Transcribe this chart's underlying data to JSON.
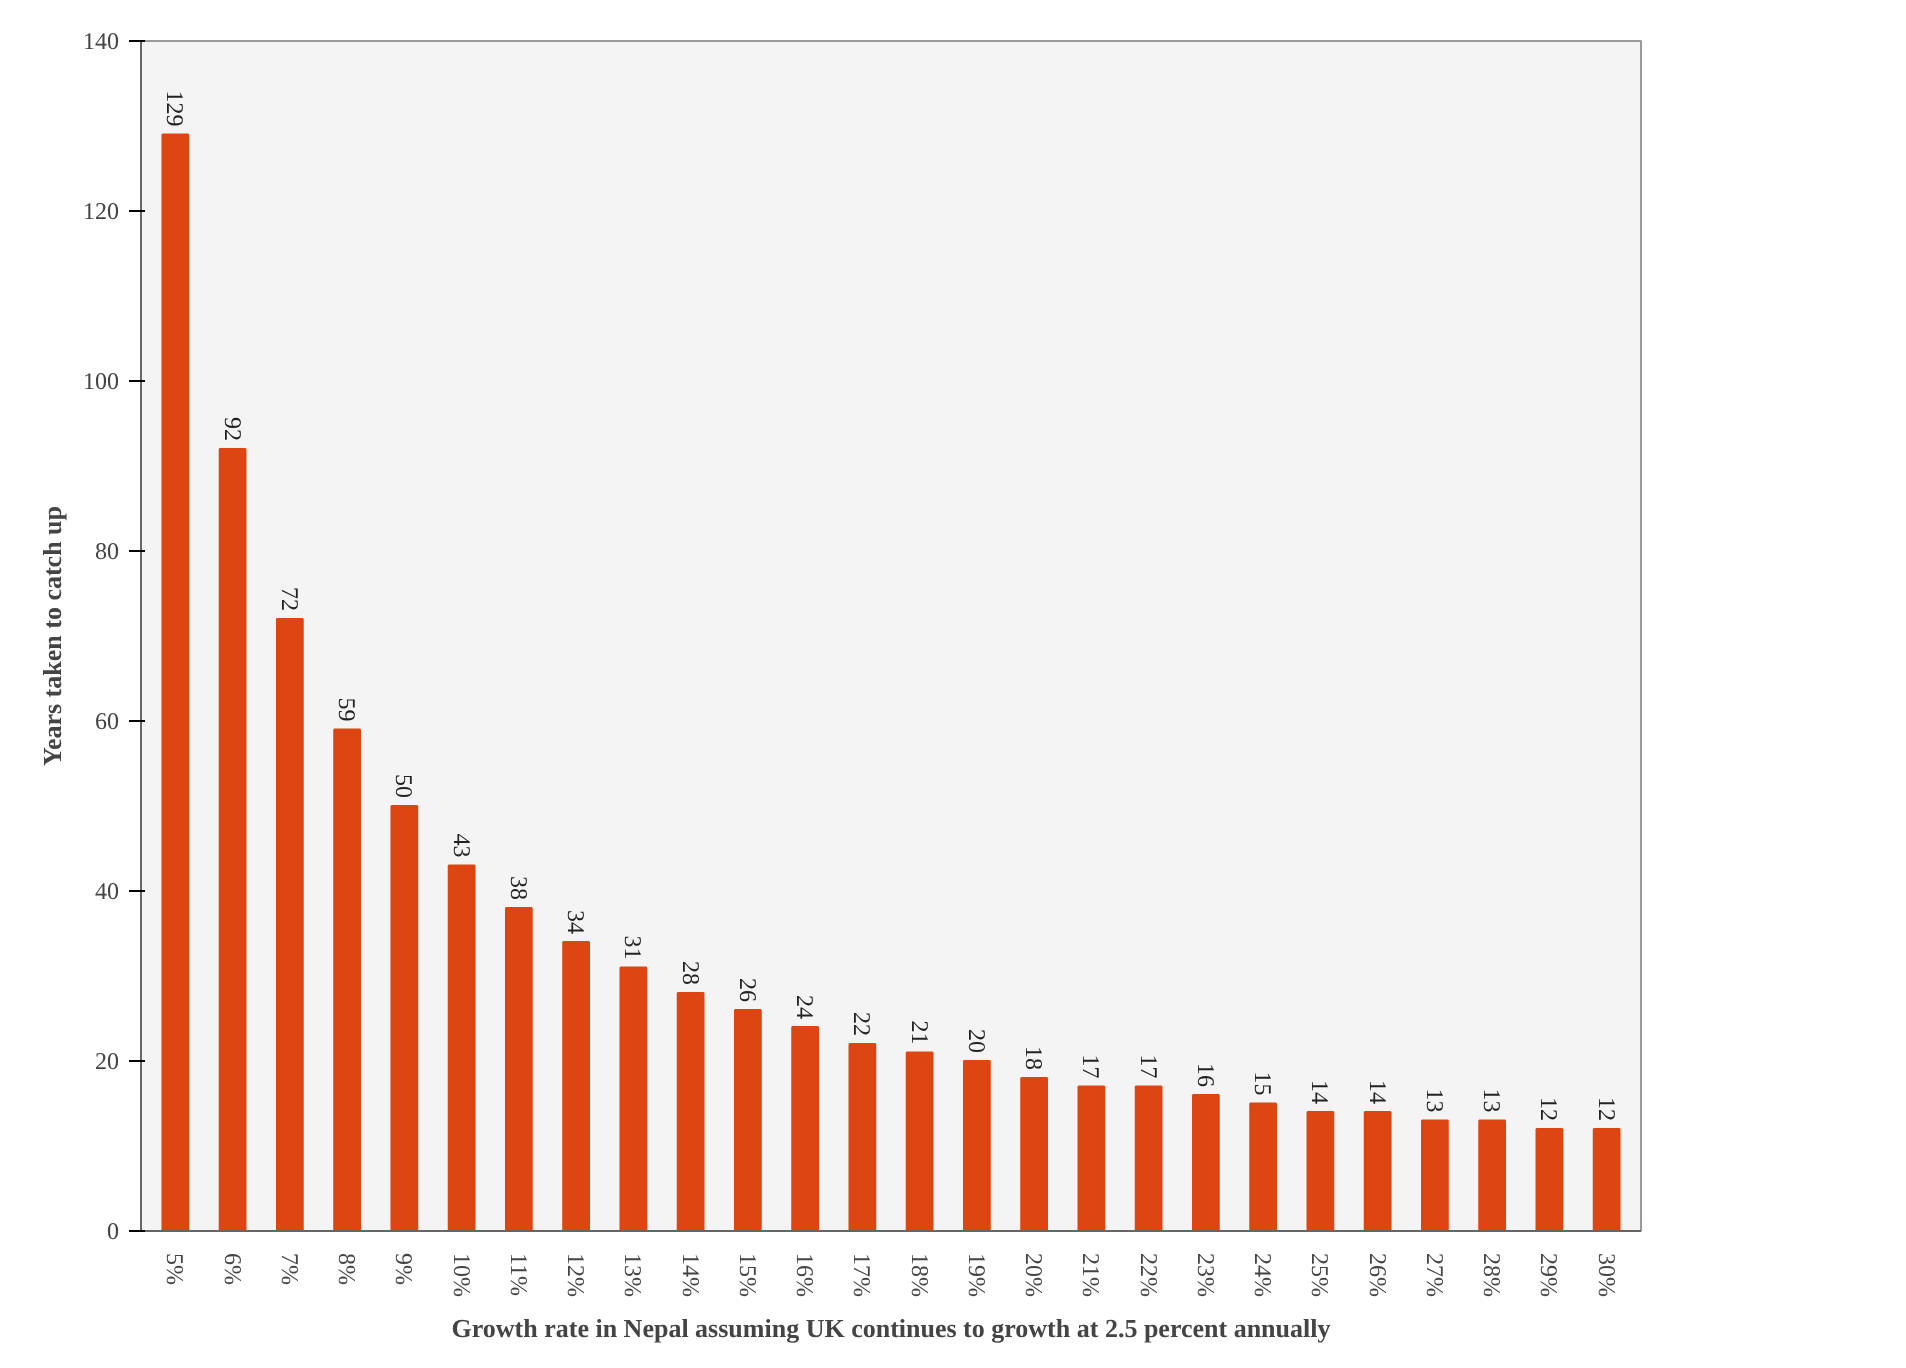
{
  "chart_data": {
    "type": "bar",
    "xlabel": "Growth rate in Nepal assuming UK continues to growth at 2.5 percent annually",
    "ylabel": "Years taken to catch up",
    "categories": [
      "5%",
      "6%",
      "7%",
      "8%",
      "9%",
      "10%",
      "11%",
      "12%",
      "13%",
      "14%",
      "15%",
      "16%",
      "17%",
      "18%",
      "19%",
      "20%",
      "21%",
      "22%",
      "23%",
      "24%",
      "25%",
      "26%",
      "27%",
      "28%",
      "29%",
      "30%"
    ],
    "values": [
      129,
      92,
      72,
      59,
      50,
      43,
      38,
      34,
      31,
      28,
      26,
      24,
      22,
      21,
      20,
      18,
      17,
      17,
      16,
      15,
      14,
      14,
      13,
      13,
      12,
      12
    ],
    "color": "#dd4512",
    "ylim": [
      0,
      140
    ],
    "yticks": [
      0,
      20,
      40,
      60,
      80,
      100,
      120,
      140
    ],
    "grid": false,
    "data_labels": true
  }
}
